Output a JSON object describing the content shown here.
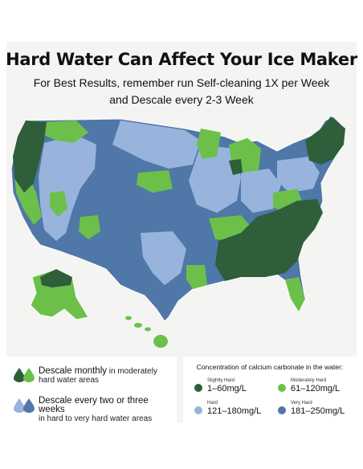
{
  "header": {
    "title": "Hard Water Can Affect Your Ice Maker",
    "subtitle_line1": "For Best Results, remember run Self-cleaning 1X per Week",
    "subtitle_line2": "and Descale every 2-3 Week"
  },
  "legend_left": {
    "monthly": {
      "main": "Descale monthly",
      "rest": " in moderately",
      "line2": "hard water areas"
    },
    "biweekly": {
      "main": "Descale every two or three weeks",
      "line2": "in hard to very hard water areas"
    }
  },
  "legend_right": {
    "title": "Concentration of calcium carbonate in the water:",
    "items": [
      {
        "label": "Slightly Hard",
        "value": "1–60mg/L",
        "color": "#2e5e3a"
      },
      {
        "label": "Moderately Hard",
        "value": "61–120mg/L",
        "color": "#6cc04a"
      },
      {
        "label": "Hard",
        "value": "121–180mg/L",
        "color": "#98b4dc"
      },
      {
        "label": "Very Hard",
        "value": "181–250mg/L",
        "color": "#4f77a8"
      }
    ]
  },
  "colors": {
    "slightly_hard": "#2e5e3a",
    "moderately_hard": "#6cc04a",
    "hard": "#98b4dc",
    "very_hard": "#4f77a8",
    "border": "#ffffff"
  }
}
